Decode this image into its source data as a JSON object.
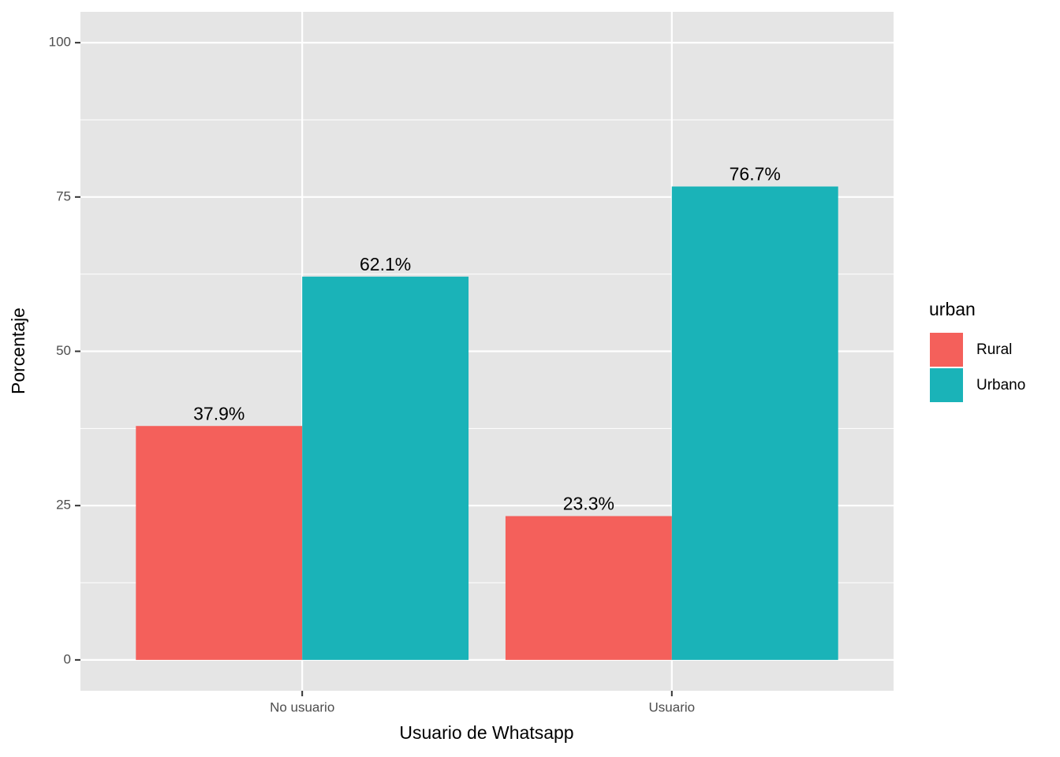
{
  "chart_data": {
    "type": "bar",
    "x_label": "Usuario de Whatsapp",
    "y_label": "Porcentaje",
    "categories": [
      "No usuario",
      "Usuario"
    ],
    "legend_title": "urban",
    "series": [
      {
        "name": "Rural",
        "color": "#f4605b",
        "values": [
          37.9,
          23.3
        ],
        "value_labels": [
          "37.9%",
          "23.3%"
        ]
      },
      {
        "name": "Urbano",
        "color": "#1ab3b8",
        "values": [
          62.1,
          76.7
        ],
        "value_labels": [
          "62.1%",
          "76.7%"
        ]
      }
    ],
    "ylim": [
      -5,
      105
    ],
    "yticks": [
      0,
      25,
      50,
      75,
      100
    ],
    "grid": true,
    "legend": "right"
  }
}
